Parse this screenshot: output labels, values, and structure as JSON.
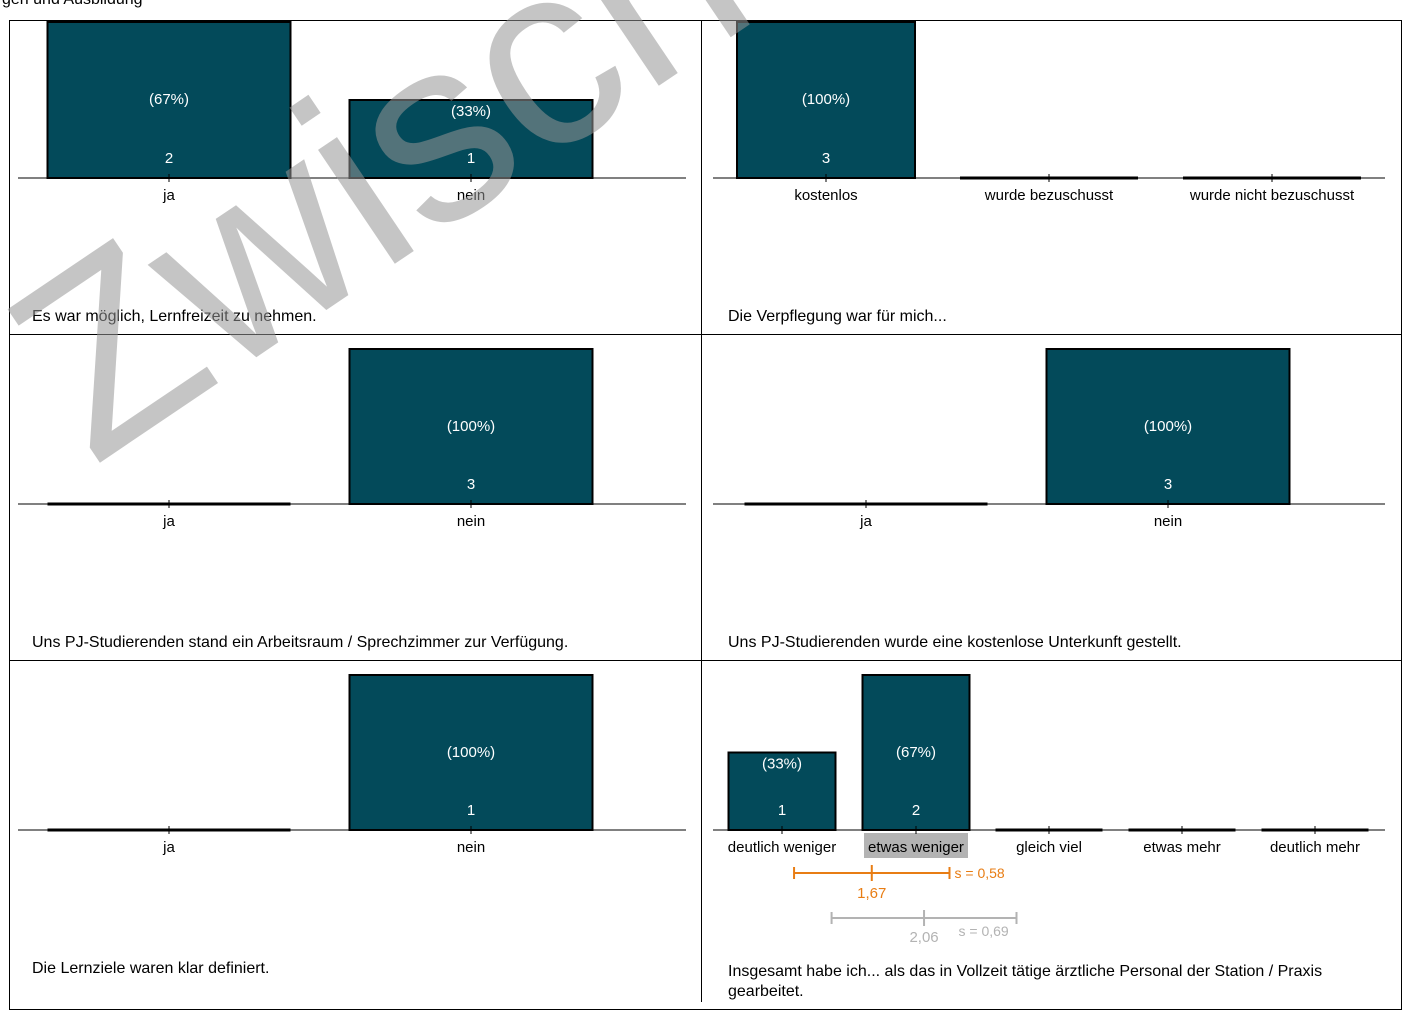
{
  "page": {
    "top_cut_text": "gen und Ausbildung"
  },
  "watermark": {
    "text": "Zwischenergebnis"
  },
  "colors": {
    "bar": "#034a5a",
    "mean_current": "#e87d14",
    "mean_reference": "#b3b3b3",
    "highlight": "#b3b3b3"
  },
  "chart_data": [
    {
      "type": "bar",
      "caption": "Es war möglich, Lernfreizeit zu nehmen.",
      "categories": [
        "ja",
        "nein"
      ],
      "values": [
        2,
        1
      ],
      "percent_labels": [
        "(67%)",
        "(33%)"
      ],
      "count_labels": [
        "2",
        "1"
      ]
    },
    {
      "type": "bar",
      "caption": "Die Verpflegung war für mich...",
      "categories": [
        "kostenlos",
        "wurde bezuschusst",
        "wurde nicht bezuschusst"
      ],
      "values": [
        3,
        0,
        0
      ],
      "percent_labels": [
        "(100%)",
        "",
        ""
      ],
      "count_labels": [
        "3",
        "",
        ""
      ]
    },
    {
      "type": "bar",
      "caption": "Uns PJ-Studierenden stand ein Arbeitsraum / Sprechzimmer zur Verfügung.",
      "categories": [
        "ja",
        "nein"
      ],
      "values": [
        0,
        3
      ],
      "percent_labels": [
        "",
        "(100%)"
      ],
      "count_labels": [
        "",
        "3"
      ]
    },
    {
      "type": "bar",
      "caption": "Uns PJ-Studierenden wurde eine kostenlose Unterkunft gestellt.",
      "categories": [
        "ja",
        "nein"
      ],
      "values": [
        0,
        3
      ],
      "percent_labels": [
        "",
        "(100%)"
      ],
      "count_labels": [
        "",
        "3"
      ]
    },
    {
      "type": "bar",
      "caption": "Die Lernziele waren klar definiert.",
      "categories": [
        "ja",
        "nein"
      ],
      "values": [
        0,
        1
      ],
      "percent_labels": [
        "",
        "(100%)"
      ],
      "count_labels": [
        "",
        "1"
      ]
    },
    {
      "type": "bar",
      "caption": "Insgesamt habe ich... als das in Vollzeit tätige ärztliche Personal der Station / Praxis gearbeitet.",
      "categories": [
        "deutlich weniger",
        "etwas weniger",
        "gleich viel",
        "etwas mehr",
        "deutlich mehr"
      ],
      "values": [
        1,
        2,
        0,
        0,
        0
      ],
      "percent_labels": [
        "(33%)",
        "(67%)",
        "",
        "",
        ""
      ],
      "count_labels": [
        "1",
        "2",
        "",
        "",
        ""
      ],
      "highlight_category": "etwas weniger",
      "mean": {
        "value": 1.67,
        "label": "1,67",
        "sd": 0.58,
        "sd_label": "s = 0,58"
      },
      "reference_mean": {
        "value": 2.06,
        "label": "2,06",
        "sd": 0.69,
        "sd_label": "s = 0,69"
      }
    }
  ]
}
